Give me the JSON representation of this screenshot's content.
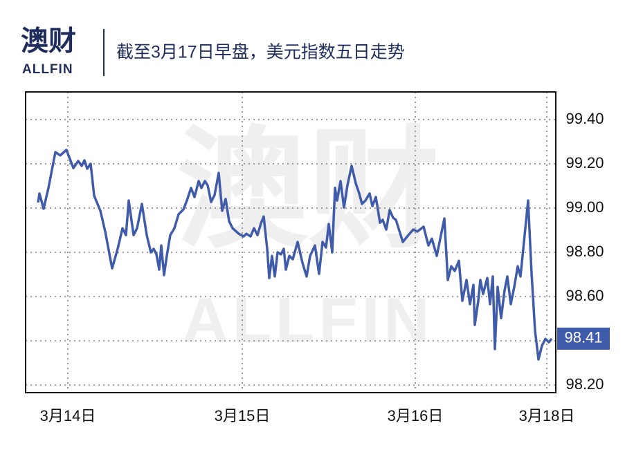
{
  "brand": {
    "name": "澳财",
    "sub": "ALLFIN"
  },
  "chart_data": {
    "type": "line",
    "title": "截至3月17日早盘，美元指数五日走势",
    "watermark": {
      "name": "澳财",
      "sub": "ALLFIN"
    },
    "x": [
      -43,
      -41,
      -35,
      -28,
      -18,
      -11,
      -2,
      8,
      15,
      20,
      24,
      28,
      33,
      38,
      47,
      54,
      64,
      72,
      79,
      84,
      88,
      95,
      100,
      107,
      114,
      120,
      124,
      128,
      132,
      135,
      139,
      143,
      148,
      154,
      160,
      167,
      172,
      178,
      183,
      189,
      193,
      198,
      202,
      207,
      212,
      218,
      223,
      228,
      233,
      238,
      247,
      254,
      258,
      264,
      269,
      274,
      279,
      283,
      288,
      291,
      295,
      299,
      303,
      308,
      312,
      315,
      320,
      325,
      332,
      339,
      345,
      350,
      357,
      363,
      368,
      373,
      377,
      382,
      386,
      389,
      394,
      399,
      404,
      410,
      416,
      421,
      425,
      430,
      436,
      440,
      445,
      451,
      455,
      460,
      465,
      470,
      474,
      484,
      492,
      499,
      505,
      514,
      521,
      526,
      533,
      544,
      549,
      554,
      559,
      565,
      570,
      576,
      581,
      586,
      588,
      593,
      596,
      600,
      606,
      610,
      614,
      617,
      621,
      626,
      631,
      635,
      640,
      645,
      650,
      654,
      665,
      670,
      675,
      680,
      685,
      690,
      695,
      699
    ],
    "series": [
      {
        "name": "美元指数",
        "color": "#3f5ba9",
        "values": [
          99.025,
          99.066,
          98.997,
          99.091,
          99.253,
          99.238,
          99.263,
          99.181,
          99.213,
          99.191,
          99.216,
          99.178,
          99.2,
          99.056,
          98.988,
          98.894,
          98.728,
          98.816,
          98.909,
          98.878,
          99.034,
          98.878,
          98.909,
          99.019,
          98.878,
          98.8,
          98.816,
          98.791,
          98.722,
          98.831,
          98.697,
          98.784,
          98.878,
          98.909,
          98.972,
          98.994,
          99.034,
          99.091,
          99.05,
          99.122,
          99.091,
          99.122,
          99.103,
          99.028,
          99.059,
          99.159,
          98.988,
          99.041,
          98.941,
          98.909,
          98.884,
          98.872,
          98.884,
          98.872,
          98.909,
          98.878,
          98.931,
          98.962,
          98.816,
          98.684,
          98.784,
          98.691,
          98.8,
          98.791,
          98.816,
          98.722,
          98.784,
          98.769,
          98.847,
          98.753,
          98.691,
          98.784,
          98.831,
          98.703,
          98.847,
          98.822,
          98.928,
          98.8,
          99.091,
          99.034,
          99.122,
          99.003,
          99.103,
          99.191,
          99.112,
          99.066,
          99.019,
          99.034,
          99.066,
          99.009,
          99.05,
          98.934,
          98.947,
          98.903,
          98.991,
          98.956,
          98.947,
          98.847,
          98.878,
          98.903,
          98.894,
          98.916,
          98.831,
          98.862,
          98.784,
          98.953,
          98.675,
          98.737,
          98.716,
          98.762,
          98.581,
          98.675,
          98.566,
          98.653,
          98.472,
          98.581,
          98.675,
          98.612,
          98.684,
          98.566,
          98.691,
          98.363,
          98.644,
          98.503,
          98.628,
          98.691,
          98.566,
          98.644,
          98.737,
          98.691,
          99.034,
          98.706,
          98.447,
          98.316,
          98.378,
          98.409,
          98.394,
          98.41
        ]
      }
    ],
    "current": {
      "value": 98.41,
      "label": "98.41"
    },
    "xlim": [
      -61,
      705
    ],
    "xticks": [
      {
        "value": 0,
        "label": "3月14日"
      },
      {
        "value": 252,
        "label": "3月15日"
      },
      {
        "value": 502,
        "label": "3月16日"
      },
      {
        "value": 692,
        "label": "3月18日"
      }
    ],
    "ylim": [
      98.166,
      99.525
    ],
    "yticks": [
      {
        "value": 98.2,
        "label": "98.20"
      },
      {
        "value": 98.4,
        "label": "98.40"
      },
      {
        "value": 98.6,
        "label": "98.60"
      },
      {
        "value": 98.8,
        "label": "98.80"
      },
      {
        "value": 99.0,
        "label": "99.00"
      },
      {
        "value": 99.2,
        "label": "99.20"
      },
      {
        "value": 99.4,
        "label": "99.40"
      }
    ],
    "grid": true
  }
}
